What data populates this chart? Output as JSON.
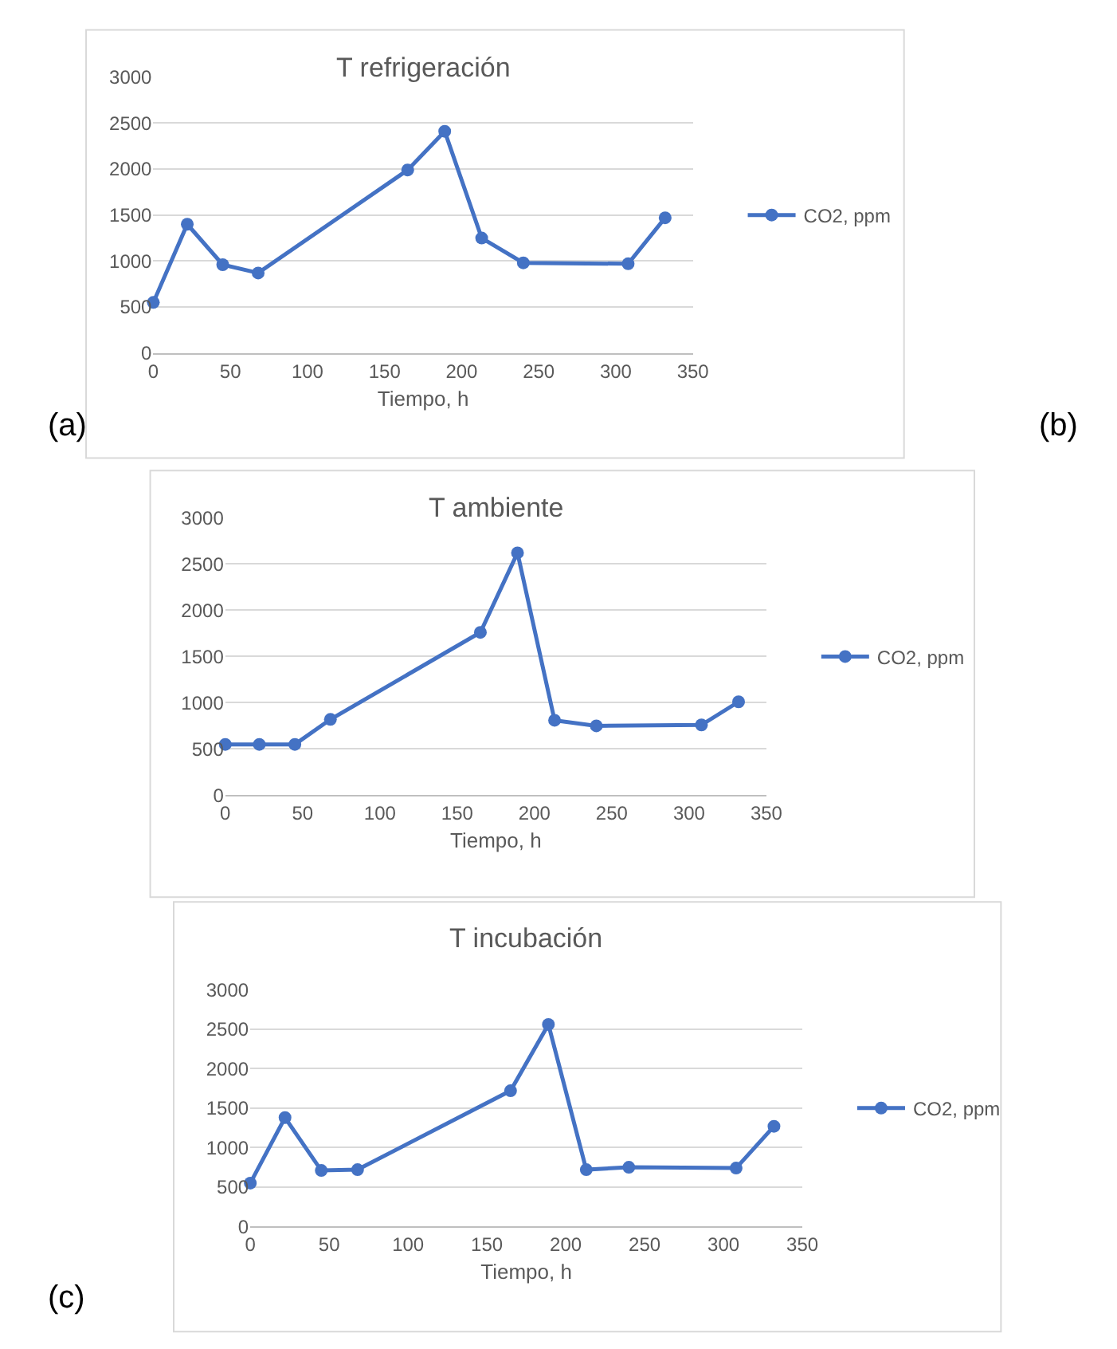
{
  "chart_data": [
    {
      "type": "line",
      "title": "T refrigeración",
      "xlabel": "Tiempo, h",
      "x": [
        0,
        22,
        45,
        68,
        165,
        189,
        213,
        240,
        308,
        332
      ],
      "series": [
        {
          "name": "CO2, ppm",
          "color": "#4472c4",
          "values": [
            550,
            1400,
            960,
            870,
            1990,
            2410,
            1250,
            980,
            970,
            1470
          ]
        }
      ],
      "xlim": [
        0,
        350
      ],
      "xticks": [
        0,
        50,
        100,
        150,
        200,
        250,
        300,
        350
      ],
      "ylim": [
        0,
        3000
      ],
      "yticks": [
        0,
        500,
        1000,
        1500,
        2000,
        2500,
        3000
      ],
      "grid": "y",
      "legend": "right",
      "marker": "circle",
      "line_style": "solid",
      "annotations": [
        "(a)"
      ]
    },
    {
      "type": "line",
      "title": "T ambiente",
      "xlabel": "Tiempo, h",
      "x": [
        0,
        22,
        45,
        68,
        165,
        189,
        213,
        240,
        308,
        332
      ],
      "series": [
        {
          "name": "CO2, ppm",
          "color": "#4472c4",
          "values": [
            550,
            550,
            550,
            820,
            1760,
            2620,
            810,
            750,
            760,
            1010
          ]
        }
      ],
      "xlim": [
        0,
        350
      ],
      "xticks": [
        0,
        50,
        100,
        150,
        200,
        250,
        300,
        350
      ],
      "ylim": [
        0,
        3000
      ],
      "yticks": [
        0,
        500,
        1000,
        1500,
        2000,
        2500,
        3000
      ],
      "grid": "y",
      "legend": "right",
      "marker": "circle",
      "line_style": "solid",
      "annotations": [
        "(b)"
      ]
    },
    {
      "type": "line",
      "title": "T incubación",
      "xlabel": "Tiempo, h",
      "x": [
        0,
        22,
        45,
        68,
        165,
        189,
        213,
        240,
        308,
        332
      ],
      "series": [
        {
          "name": "CO2, ppm",
          "color": "#4472c4",
          "values": [
            550,
            1380,
            710,
            720,
            1720,
            2560,
            720,
            750,
            740,
            1270
          ]
        }
      ],
      "xlim": [
        0,
        350
      ],
      "xticks": [
        0,
        50,
        100,
        150,
        200,
        250,
        300,
        350
      ],
      "ylim": [
        0,
        3000
      ],
      "yticks": [
        0,
        500,
        1000,
        1500,
        2000,
        2500,
        3000
      ],
      "grid": "y",
      "legend": "right",
      "marker": "circle",
      "line_style": "solid",
      "annotations": [
        "(c)"
      ]
    }
  ]
}
